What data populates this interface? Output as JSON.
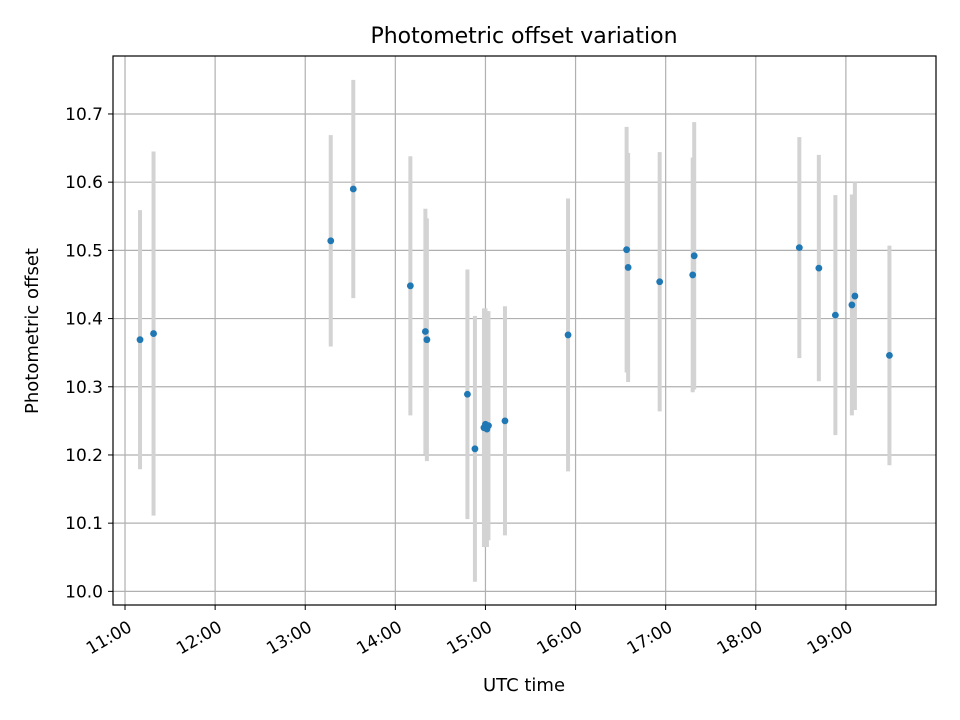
{
  "chart_data": {
    "type": "scatter",
    "title": "Photometric offset variation",
    "xlabel": "UTC time",
    "ylabel": "Photometric offset",
    "x_ticks": [
      "11:00",
      "12:00",
      "13:00",
      "14:00",
      "15:00",
      "16:00",
      "17:00",
      "18:00",
      "19:00"
    ],
    "y_ticks": [
      "10.0",
      "10.1",
      "10.2",
      "10.3",
      "10.4",
      "10.5",
      "10.6",
      "10.7"
    ],
    "xlim": [
      "10:52",
      "20:00"
    ],
    "ylim": [
      9.98,
      10.785
    ],
    "grid": true,
    "marker_color": "#1f77b4",
    "errorbar_color": "#d3d3d3",
    "points": [
      {
        "x": "11:10",
        "y": 10.369,
        "yerr": 0.19
      },
      {
        "x": "11:19",
        "y": 10.378,
        "yerr": 0.267
      },
      {
        "x": "13:17",
        "y": 10.514,
        "yerr": 0.155
      },
      {
        "x": "13:32",
        "y": 10.59,
        "yerr": 0.16
      },
      {
        "x": "14:10",
        "y": 10.448,
        "yerr": 0.19
      },
      {
        "x": "14:20",
        "y": 10.381,
        "yerr": 0.18
      },
      {
        "x": "14:21",
        "y": 10.369,
        "yerr": 0.178
      },
      {
        "x": "14:48",
        "y": 10.289,
        "yerr": 0.183
      },
      {
        "x": "14:53",
        "y": 10.209,
        "yerr": 0.195
      },
      {
        "x": "14:59",
        "y": 10.24,
        "yerr": 0.175
      },
      {
        "x": "15:00",
        "y": 10.245,
        "yerr": 0.17
      },
      {
        "x": "15:01",
        "y": 10.238,
        "yerr": 0.173
      },
      {
        "x": "15:02",
        "y": 10.243,
        "yerr": 0.168
      },
      {
        "x": "15:13",
        "y": 10.25,
        "yerr": 0.168
      },
      {
        "x": "15:55",
        "y": 10.376,
        "yerr": 0.2
      },
      {
        "x": "16:34",
        "y": 10.501,
        "yerr": 0.18
      },
      {
        "x": "16:35",
        "y": 10.475,
        "yerr": 0.168
      },
      {
        "x": "16:56",
        "y": 10.454,
        "yerr": 0.19
      },
      {
        "x": "17:18",
        "y": 10.464,
        "yerr": 0.172
      },
      {
        "x": "17:19",
        "y": 10.492,
        "yerr": 0.196
      },
      {
        "x": "18:29",
        "y": 10.504,
        "yerr": 0.162
      },
      {
        "x": "18:42",
        "y": 10.474,
        "yerr": 0.166
      },
      {
        "x": "18:53",
        "y": 10.405,
        "yerr": 0.176
      },
      {
        "x": "19:04",
        "y": 10.42,
        "yerr": 0.162
      },
      {
        "x": "19:06",
        "y": 10.433,
        "yerr": 0.167
      },
      {
        "x": "19:29",
        "y": 10.346,
        "yerr": 0.161
      }
    ]
  }
}
